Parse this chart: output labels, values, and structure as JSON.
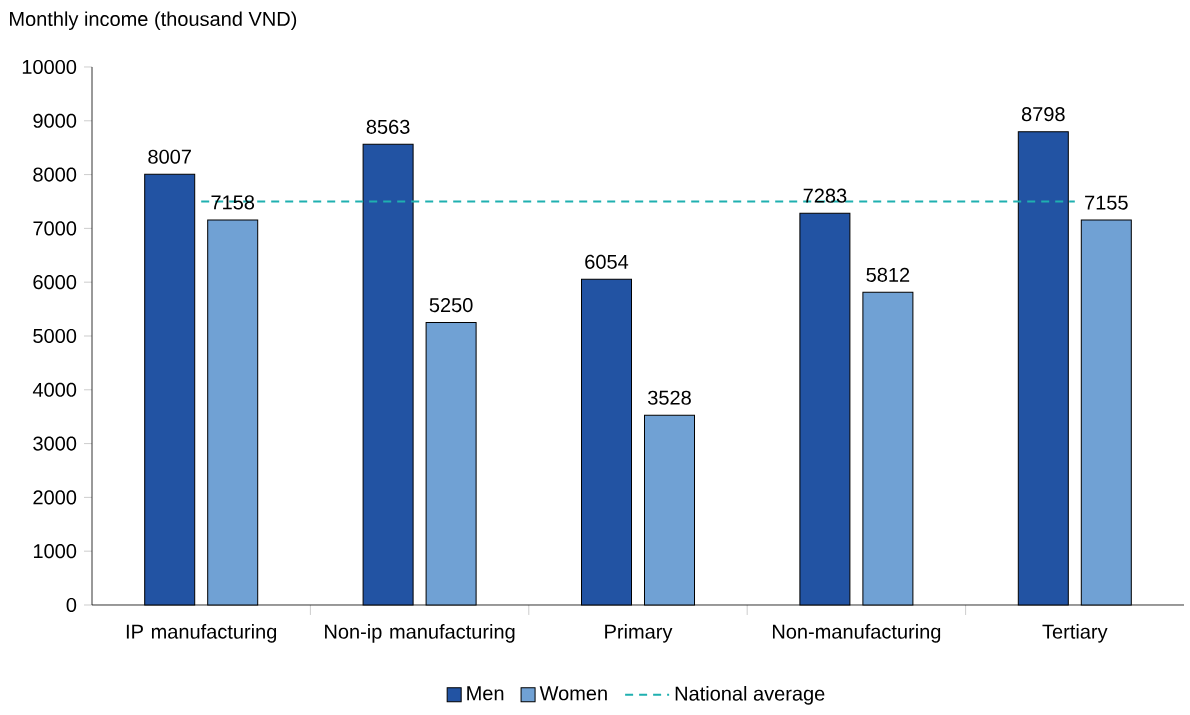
{
  "chart_data": {
    "type": "bar",
    "ylabel": "Monthly income (thousand VND)",
    "categories": [
      "IP manufacturing",
      "Non-ip manufacturing",
      "Primary",
      "Non-manufacturing",
      "Tertiary"
    ],
    "series": [
      {
        "name": "Men",
        "color": "#2253a3",
        "values": [
          8007,
          8563,
          6054,
          7283,
          8798
        ]
      },
      {
        "name": "Women",
        "color": "#70a1d4",
        "values": [
          7158,
          5250,
          3528,
          5812,
          7155
        ]
      }
    ],
    "ylim": [
      0,
      10000
    ],
    "yticks": [
      0,
      1000,
      2000,
      3000,
      4000,
      5000,
      6000,
      7000,
      8000,
      9000,
      10000
    ],
    "ref_lines": [
      {
        "axis": "y",
        "value": 7500,
        "label": "National average",
        "color": "#1fb0b0",
        "line_style": "dashed"
      }
    ],
    "data_labels": true,
    "legend": "bottom",
    "grid": false
  }
}
